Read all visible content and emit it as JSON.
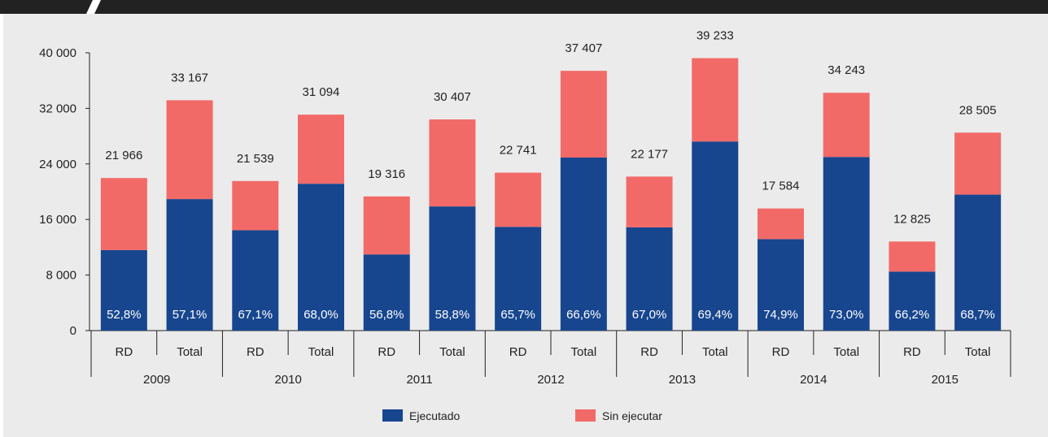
{
  "colors": {
    "ejecutado": "#17468f",
    "sin_ejecutar": "#f26a67",
    "background": "#ebebeb",
    "topbar": "#222222"
  },
  "chart_data": {
    "type": "bar",
    "stacked": true,
    "ylim": [
      0,
      40000
    ],
    "yticks": [
      0,
      8000,
      16000,
      24000,
      32000,
      40000
    ],
    "ytick_labels": [
      "0",
      "8 000",
      "16 000",
      "24 000",
      "32 000",
      "40 000"
    ],
    "groups": [
      "2009",
      "2010",
      "2011",
      "2012",
      "2013",
      "2014",
      "2015"
    ],
    "categories": [
      "RD",
      "Total",
      "RD",
      "Total",
      "RD",
      "Total",
      "RD",
      "Total",
      "RD",
      "Total",
      "RD",
      "Total",
      "RD",
      "Total"
    ],
    "totals": [
      21966,
      33167,
      21539,
      31094,
      19316,
      30407,
      22741,
      37407,
      22177,
      39233,
      17584,
      34243,
      12825,
      28505
    ],
    "total_labels": [
      "21 966",
      "33 167",
      "21 539",
      "31 094",
      "19 316",
      "30 407",
      "22 741",
      "37 407",
      "22 177",
      "39 233",
      "17 584",
      "34 243",
      "12 825",
      "28 505"
    ],
    "series": [
      {
        "name": "Ejecutado",
        "values": [
          11598,
          18938,
          14453,
          21144,
          10971,
          17879,
          14941,
          24913,
          14859,
          27228,
          13170,
          24997,
          8490,
          19583
        ]
      },
      {
        "name": "Sin ejecutar",
        "values": [
          10368,
          14229,
          7086,
          9950,
          8345,
          12528,
          7800,
          12494,
          7318,
          12005,
          4414,
          9246,
          4335,
          8922
        ]
      }
    ],
    "percent_labels": [
      "52,8%",
      "57,1%",
      "67,1%",
      "68,0%",
      "56,8%",
      "58,8%",
      "65,7%",
      "66,6%",
      "67,0%",
      "69,4%",
      "74,9%",
      "73,0%",
      "66,2%",
      "68,7%"
    ],
    "legend": [
      "Ejecutado",
      "Sin ejecutar"
    ],
    "legend_position": "bottom",
    "grid": false
  }
}
